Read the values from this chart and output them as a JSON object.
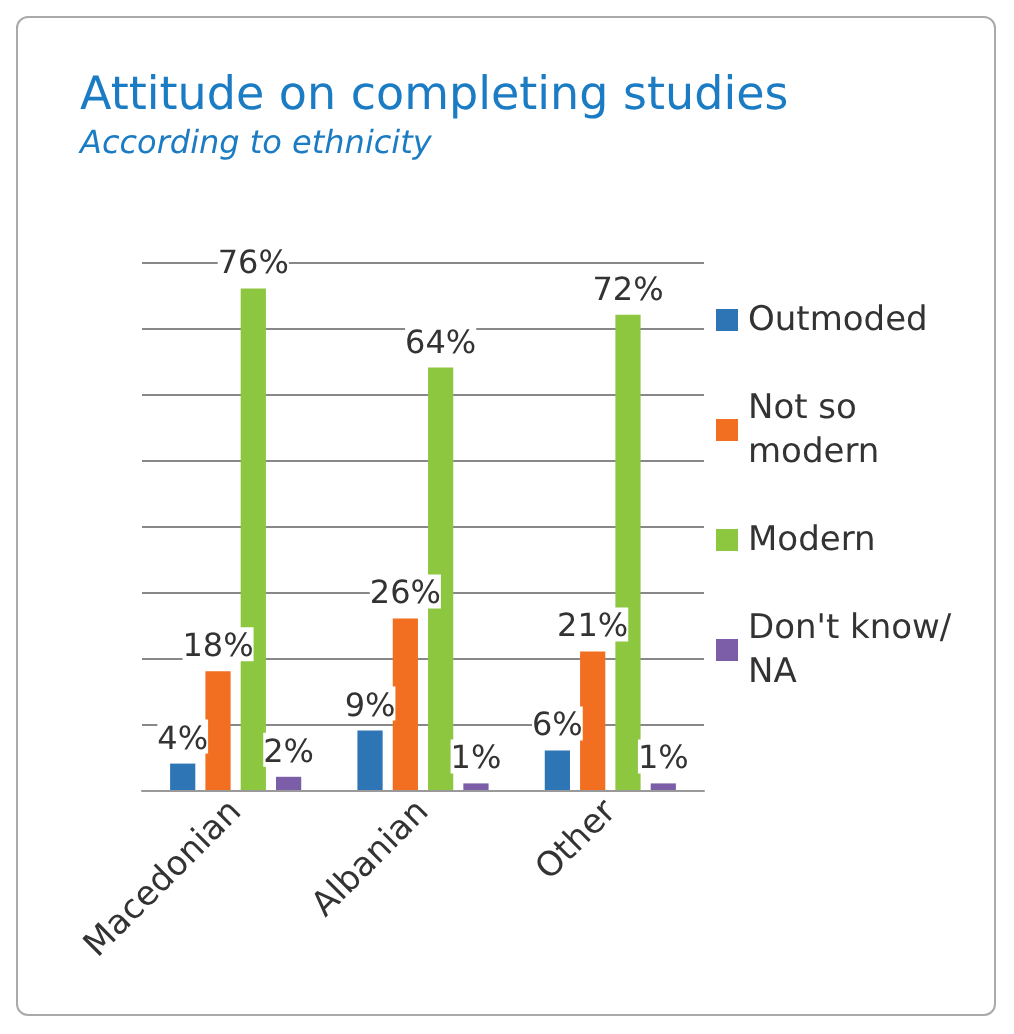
{
  "chart_data": {
    "type": "bar",
    "title": "Attitude on completing studies",
    "subtitle": "According to ethnicity",
    "categories": [
      "Macedonian",
      "Albanian",
      "Other"
    ],
    "series": [
      {
        "name": "Outmoded",
        "color": "#2e75b6",
        "values": [
          4,
          9,
          6
        ],
        "value_labels": [
          "4%",
          "9%",
          "6%"
        ]
      },
      {
        "name": "Not so modern",
        "color": "#f26f21",
        "values": [
          18,
          26,
          21
        ],
        "value_labels": [
          "18%",
          "26%",
          "21%"
        ]
      },
      {
        "name": "Modern",
        "color": "#8dc63f",
        "values": [
          76,
          64,
          72
        ],
        "value_labels": [
          "76%",
          "64%",
          "72%"
        ]
      },
      {
        "name": "Don't know/NA",
        "color": "#7b5ea7",
        "values": [
          2,
          1,
          1
        ],
        "value_labels": [
          "2%",
          "1%",
          "1%"
        ]
      }
    ],
    "tick_labels": "x",
    "grid": "y",
    "legend": "right"
  }
}
